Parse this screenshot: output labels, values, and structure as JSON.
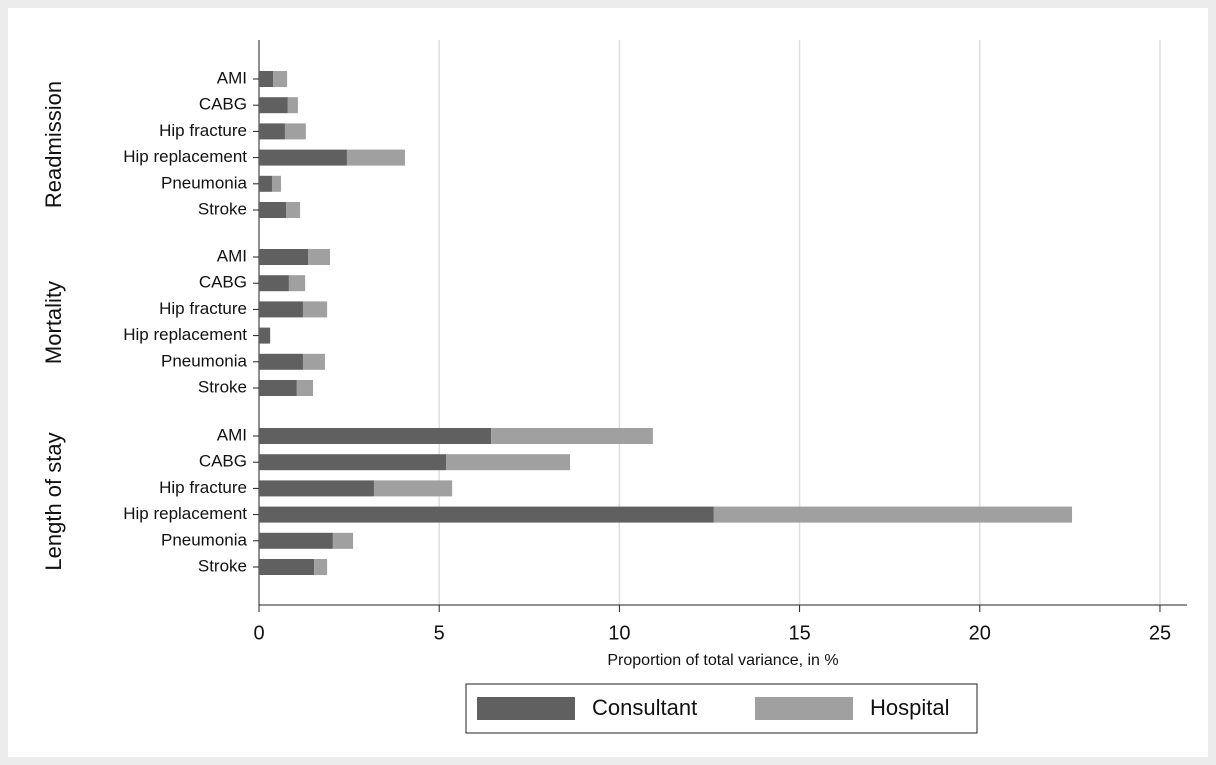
{
  "chart_data": {
    "type": "bar",
    "orientation": "horizontal",
    "stacked": true,
    "x_label": "Proportion of total variance, in %",
    "groups": [
      {
        "label": "Readmission",
        "categories": [
          "AMI",
          "CABG",
          "Hip fracture",
          "Hip replacement",
          "Pneumonia",
          "Stroke"
        ]
      },
      {
        "label": "Mortality",
        "categories": [
          "AMI",
          "CABG",
          "Hip fracture",
          "Hip replacement",
          "Pneumonia",
          "Stroke"
        ]
      },
      {
        "label": "Length of stay",
        "categories": [
          "AMI",
          "CABG",
          "Hip fracture",
          "Hip replacement",
          "Pneumonia",
          "Stroke"
        ]
      }
    ],
    "series": [
      {
        "name": "Consultant",
        "color": "#606060",
        "values": [
          0.39,
          0.8,
          0.72,
          2.44,
          0.36,
          0.75,
          1.36,
          0.83,
          1.22,
          0.31,
          1.22,
          1.05,
          6.44,
          5.19,
          3.19,
          12.62,
          2.05,
          1.53
        ]
      },
      {
        "name": "Hospital",
        "color": "#a0a0a0",
        "values": [
          0.39,
          0.28,
          0.58,
          1.61,
          0.25,
          0.39,
          0.61,
          0.45,
          0.67,
          0,
          0.61,
          0.45,
          4.49,
          3.44,
          2.17,
          9.94,
          0.56,
          0.36
        ]
      }
    ],
    "xlim": [
      0,
      25.75
    ],
    "xticks": [
      0,
      5,
      10,
      15,
      20,
      25
    ],
    "grid": true,
    "legend": "bottom"
  }
}
